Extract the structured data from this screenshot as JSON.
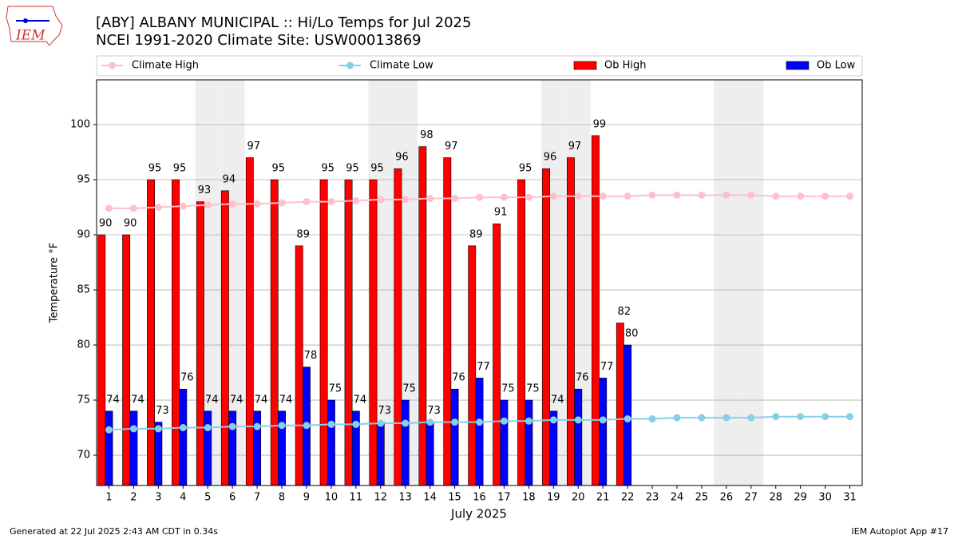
{
  "logo_text": "IEM",
  "footer_left": "Generated at 22 Jul 2025 2:43 AM CDT in 0.34s",
  "footer_right": "IEM Autoplot App #17",
  "chart_data": {
    "type": "bar",
    "title": "[ABY] ALBANY MUNICIPAL :: Hi/Lo Temps for Jul 2025",
    "subtitle": "NCEI 1991-2020 Climate Site: USW00013869",
    "x_label": "July 2025",
    "y_label": "Temperature °F",
    "x": [
      1,
      2,
      3,
      4,
      5,
      6,
      7,
      8,
      9,
      10,
      11,
      12,
      13,
      14,
      15,
      16,
      17,
      18,
      19,
      20,
      21,
      22,
      23,
      24,
      25,
      26,
      27,
      28,
      29,
      30,
      31
    ],
    "xlim": [
      0.5,
      31.5
    ],
    "xticks": [
      1,
      2,
      3,
      4,
      5,
      6,
      7,
      8,
      9,
      10,
      11,
      12,
      13,
      14,
      15,
      16,
      17,
      18,
      19,
      20,
      21,
      22,
      23,
      24,
      25,
      26,
      27,
      28,
      29,
      30,
      31
    ],
    "ylim": [
      67.25,
      104.06
    ],
    "yticks": [
      70,
      75,
      80,
      85,
      90,
      95,
      100
    ],
    "grid": true,
    "shaded_days": [
      5,
      6,
      12,
      13,
      19,
      20,
      26,
      27
    ],
    "series": [
      {
        "name": "Climate High",
        "kind": "line",
        "color": "#ffc0cb",
        "values": [
          92.4,
          92.4,
          92.5,
          92.6,
          92.7,
          92.8,
          92.8,
          92.9,
          93.0,
          93.0,
          93.1,
          93.2,
          93.2,
          93.3,
          93.3,
          93.4,
          93.4,
          93.4,
          93.5,
          93.5,
          93.5,
          93.5,
          93.6,
          93.6,
          93.6,
          93.6,
          93.6,
          93.5,
          93.5,
          93.5,
          93.5
        ]
      },
      {
        "name": "Climate Low",
        "kind": "line",
        "color": "#87ceeb",
        "values": [
          72.3,
          72.4,
          72.4,
          72.5,
          72.5,
          72.6,
          72.6,
          72.7,
          72.7,
          72.8,
          72.8,
          72.9,
          72.9,
          73.0,
          73.0,
          73.0,
          73.1,
          73.1,
          73.2,
          73.2,
          73.2,
          73.3,
          73.3,
          73.4,
          73.4,
          73.4,
          73.4,
          73.5,
          73.5,
          73.5,
          73.5
        ]
      },
      {
        "name": "Ob High",
        "kind": "bar",
        "color": "#ff0000",
        "values": [
          90,
          90,
          95,
          95,
          93,
          94,
          97,
          95,
          89,
          95,
          95,
          95,
          96,
          98,
          97,
          89,
          91,
          95,
          96,
          97,
          99,
          82,
          null,
          null,
          null,
          null,
          null,
          null,
          null,
          null,
          null
        ]
      },
      {
        "name": "Ob Low",
        "kind": "bar",
        "color": "#0000ff",
        "values": [
          74,
          74,
          73,
          76,
          74,
          74,
          74,
          74,
          78,
          75,
          74,
          73,
          75,
          73,
          76,
          77,
          75,
          75,
          74,
          76,
          77,
          80,
          null,
          null,
          null,
          null,
          null,
          null,
          null,
          null,
          null
        ]
      }
    ]
  }
}
